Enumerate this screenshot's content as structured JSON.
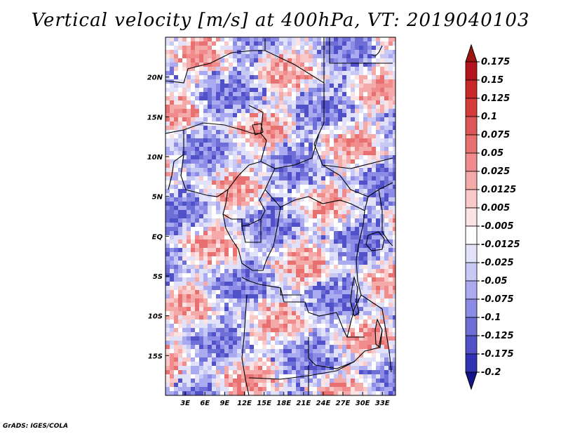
{
  "title": "Vertical velocity [m/s] at 400hPa, VT: 2019040103",
  "credit": "GrADS: IGES/COLA",
  "map": {
    "variable": "vertical velocity",
    "units": "m/s",
    "level": "400hPa",
    "valid_time": "2019040103",
    "lon_range": [
      0,
      35
    ],
    "lat_range": [
      -20,
      25
    ],
    "x_ticks": [
      {
        "value": 3,
        "label": "3E"
      },
      {
        "value": 6,
        "label": "6E"
      },
      {
        "value": 9,
        "label": "9E"
      },
      {
        "value": 12,
        "label": "12E"
      },
      {
        "value": 15,
        "label": "15E"
      },
      {
        "value": 18,
        "label": "18E"
      },
      {
        "value": 21,
        "label": "21E"
      },
      {
        "value": 24,
        "label": "24E"
      },
      {
        "value": 27,
        "label": "27E"
      },
      {
        "value": 30,
        "label": "30E"
      },
      {
        "value": 33,
        "label": "33E"
      }
    ],
    "y_ticks": [
      {
        "value": 20,
        "label": "20N"
      },
      {
        "value": 15,
        "label": "15N"
      },
      {
        "value": 10,
        "label": "10N"
      },
      {
        "value": 5,
        "label": "5N"
      },
      {
        "value": 0,
        "label": "EQ"
      },
      {
        "value": -5,
        "label": "5S"
      },
      {
        "value": -10,
        "label": "10S"
      },
      {
        "value": -15,
        "label": "15S"
      }
    ]
  },
  "colorbar": {
    "entries": [
      {
        "label": "0.175",
        "color": "#b4141e"
      },
      {
        "label": "0.15",
        "color": "#c82828"
      },
      {
        "label": "0.125",
        "color": "#d73c3c"
      },
      {
        "label": "0.1",
        "color": "#e05555"
      },
      {
        "label": "0.075",
        "color": "#e87070"
      },
      {
        "label": "0.05",
        "color": "#f08c8c"
      },
      {
        "label": "0.025",
        "color": "#f5aaaa"
      },
      {
        "label": "0.0125",
        "color": "#f9c8c8"
      },
      {
        "label": "0.005",
        "color": "#fce3e3"
      },
      {
        "label": "-0.005",
        "color": "#ffffff"
      },
      {
        "label": "-0.0125",
        "color": "#e1e1fa"
      },
      {
        "label": "-0.025",
        "color": "#c8c8f5"
      },
      {
        "label": "-0.05",
        "color": "#aaaaf0"
      },
      {
        "label": "-0.075",
        "color": "#8c8ce6"
      },
      {
        "label": "-0.1",
        "color": "#6e6ed7"
      },
      {
        "label": "-0.125",
        "color": "#5050c8"
      },
      {
        "label": "-0.175",
        "color": "#3232b4"
      },
      {
        "label": "-0.2",
        "color": "#1e1ea0"
      }
    ],
    "top_color": "#a01414",
    "bottom_color": "#14148c"
  }
}
